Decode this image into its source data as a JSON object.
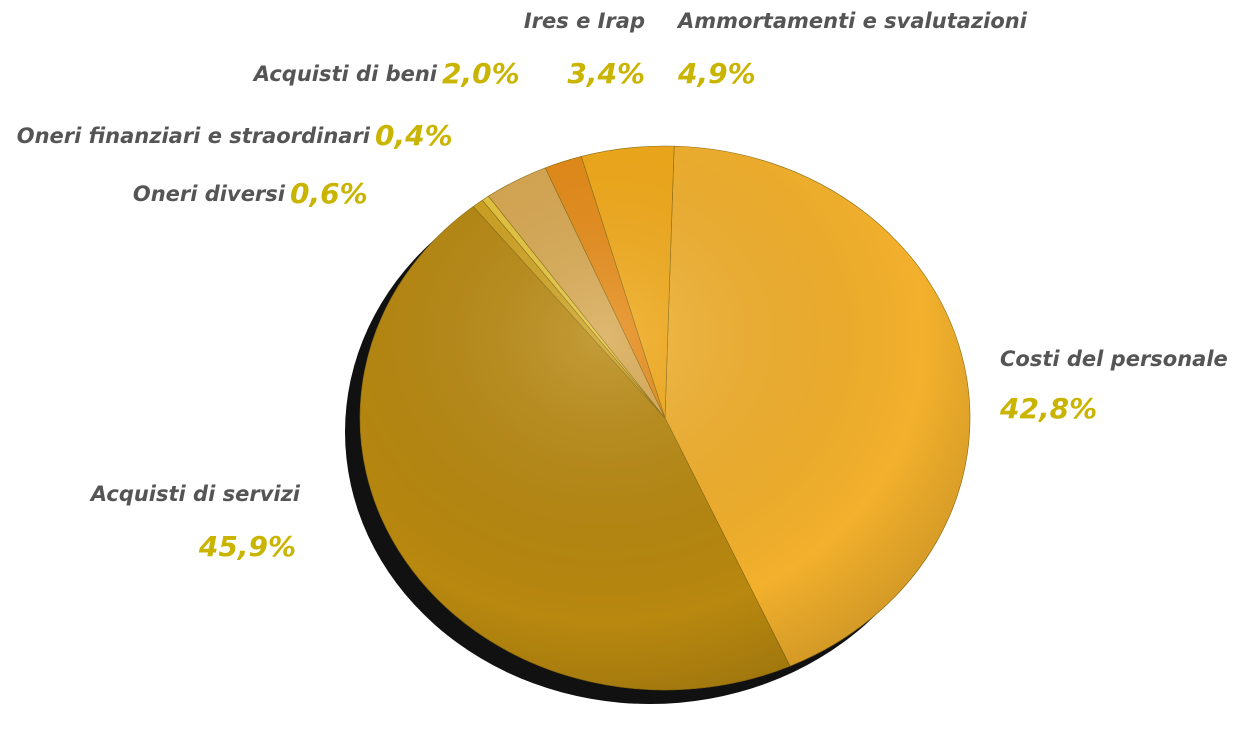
{
  "chart_data": {
    "type": "pie",
    "categories": [
      "Costi del personale",
      "Acquisti di servizi",
      "Oneri diversi",
      "Oneri finanziari e straordinari",
      "Ires e Irap",
      "Acquisti di beni",
      "Ammortamenti e svalutazioni"
    ],
    "values": [
      42.8,
      45.9,
      0.6,
      0.4,
      3.4,
      2.0,
      4.9
    ],
    "value_labels": [
      "42,8%",
      "45,9%",
      "0,6%",
      "0,4%",
      "3,4%",
      "2,0%",
      "4,9%"
    ],
    "colors": [
      "#f2b02c",
      "#b8880f",
      "#cfa21e",
      "#e6c53a",
      "#d8a850",
      "#e68a14",
      "#f2a916"
    ]
  }
}
